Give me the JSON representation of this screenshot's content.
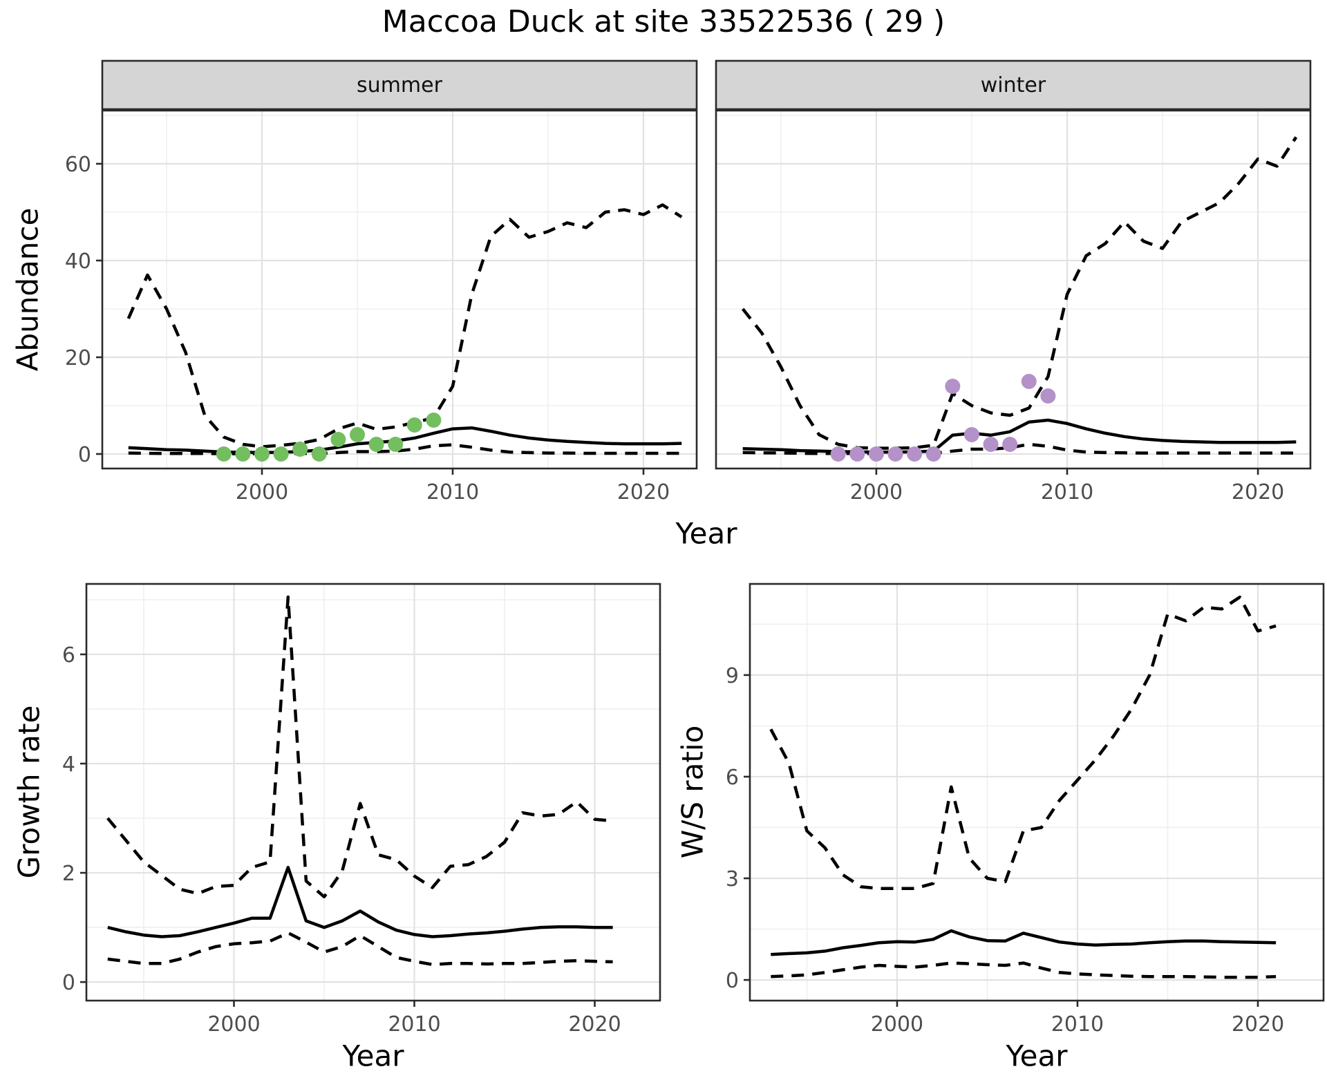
{
  "title": "Maccoa Duck at site 33522536 ( 29 )",
  "top_row": {
    "xlabel": "Year",
    "ylabel": "Abundance",
    "facets": [
      "summer",
      "winter"
    ]
  },
  "styles": {
    "background": "#ffffff",
    "grid_major": "#e2e2e2",
    "grid_minor": "#efefef",
    "panel_border": "#2a2a2a",
    "strip_fill": "#d5d5d5",
    "strip_text": "#111111",
    "tick_label_color": "#4d4d4d",
    "axis_title_color": "#000000",
    "line_color": "#000000",
    "summer_point_color": "#73be5f",
    "winter_point_color": "#b491c8"
  },
  "chart_data": [
    {
      "id": "abundance-summer",
      "type": "line",
      "facet": "summer",
      "xlabel": "Year",
      "ylabel": "Abundance",
      "xlim": [
        1991.63,
        2022.79
      ],
      "ylim": [
        -3,
        71
      ],
      "xticks": [
        2000,
        2010,
        2020
      ],
      "yticks": [
        0,
        20,
        40,
        60
      ],
      "grid": true,
      "x": [
        1993,
        1994,
        1995,
        1996,
        1997,
        1998,
        1999,
        2000,
        2001,
        2002,
        2003,
        2004,
        2005,
        2006,
        2007,
        2008,
        2009,
        2010,
        2011,
        2012,
        2013,
        2014,
        2015,
        2016,
        2017,
        2018,
        2019,
        2020,
        2021,
        2022
      ],
      "series": [
        {
          "name": "median",
          "linetype": "solid",
          "values": [
            1.3,
            1.1,
            0.9,
            0.8,
            0.6,
            0.4,
            0.35,
            0.3,
            0.35,
            0.5,
            0.8,
            1.4,
            2.1,
            2.4,
            2.7,
            3.3,
            4.3,
            5.2,
            5.4,
            4.7,
            3.9,
            3.3,
            2.9,
            2.6,
            2.4,
            2.2,
            2.1,
            2.1,
            2.1,
            2.2
          ]
        },
        {
          "name": "upper-ci",
          "linetype": "dashed",
          "values": [
            28,
            37,
            30,
            21,
            8,
            3.5,
            2,
            1.5,
            1.8,
            2.2,
            3,
            5.2,
            6.4,
            5.1,
            5.6,
            6.5,
            7.5,
            14,
            33,
            45,
            48.5,
            44.8,
            46,
            47.8,
            46.8,
            50,
            50.5,
            49.5,
            51.5,
            49
          ]
        },
        {
          "name": "lower-ci",
          "linetype": "dashed",
          "values": [
            0.2,
            0.15,
            0.1,
            0.1,
            0.1,
            0.05,
            0.05,
            0.05,
            0.05,
            0.1,
            0.1,
            0.3,
            0.5,
            0.5,
            0.6,
            1.0,
            1.7,
            1.9,
            1.4,
            0.8,
            0.4,
            0.3,
            0.2,
            0.2,
            0.15,
            0.15,
            0.15,
            0.15,
            0.15,
            0.15
          ]
        }
      ],
      "points": {
        "name": "observed-summer-counts",
        "color": "#73be5f",
        "x": [
          1998,
          1999,
          2000,
          2001,
          2002,
          2003,
          2004,
          2005,
          2006,
          2007,
          2008,
          2009
        ],
        "y": [
          0,
          0,
          0,
          0,
          1,
          0,
          3,
          4,
          2,
          2,
          6,
          7
        ]
      }
    },
    {
      "id": "abundance-winter",
      "type": "line",
      "facet": "winter",
      "xlabel": "Year",
      "ylabel": "Abundance",
      "xlim": [
        1991.6,
        2022.75
      ],
      "ylim": [
        -3,
        71
      ],
      "xticks": [
        2000,
        2010,
        2020
      ],
      "yticks": [
        0,
        20,
        40,
        60
      ],
      "grid": true,
      "x": [
        1993,
        1994,
        1995,
        1996,
        1997,
        1998,
        1999,
        2000,
        2001,
        2002,
        2003,
        2004,
        2005,
        2006,
        2007,
        2008,
        2009,
        2010,
        2011,
        2012,
        2013,
        2014,
        2015,
        2016,
        2017,
        2018,
        2019,
        2020,
        2021,
        2022
      ],
      "series": [
        {
          "name": "median",
          "linetype": "solid",
          "values": [
            1.1,
            1.0,
            0.9,
            0.7,
            0.6,
            0.5,
            0.45,
            0.4,
            0.4,
            0.45,
            0.6,
            3.9,
            4.3,
            3.9,
            4.6,
            6.6,
            7.0,
            6.3,
            5.2,
            4.3,
            3.6,
            3.1,
            2.8,
            2.6,
            2.5,
            2.4,
            2.4,
            2.4,
            2.4,
            2.5
          ]
        },
        {
          "name": "upper-ci",
          "linetype": "dashed",
          "values": [
            30,
            25,
            18,
            10,
            4,
            2,
            1.3,
            1.2,
            1.2,
            1.3,
            1.8,
            12.5,
            10,
            8.5,
            8,
            9.5,
            16,
            33,
            41,
            43.5,
            48,
            44,
            42.5,
            48,
            50,
            52,
            56,
            61,
            59.5,
            65.5
          ]
        },
        {
          "name": "lower-ci",
          "linetype": "dashed",
          "values": [
            0.3,
            0.25,
            0.2,
            0.15,
            0.1,
            0.1,
            0.1,
            0.1,
            0.1,
            0.1,
            0.15,
            0.6,
            1.0,
            1.0,
            1.3,
            2.0,
            1.6,
            0.8,
            0.4,
            0.3,
            0.25,
            0.2,
            0.2,
            0.2,
            0.2,
            0.2,
            0.2,
            0.2,
            0.2,
            0.2
          ]
        }
      ],
      "points": {
        "name": "observed-winter-counts",
        "color": "#b491c8",
        "x": [
          1998,
          1999,
          2000,
          2001,
          2002,
          2003,
          2004,
          2005,
          2006,
          2007,
          2008,
          2009
        ],
        "y": [
          0,
          0,
          0,
          0,
          0,
          0,
          14,
          4,
          2,
          2,
          15,
          12
        ]
      }
    },
    {
      "id": "growth-rate",
      "type": "line",
      "facet": null,
      "xlabel": "Year",
      "ylabel": "Growth rate",
      "xlim": [
        1991.82,
        2023.62
      ],
      "ylim": [
        -0.34,
        7.29
      ],
      "xticks": [
        2000,
        2010,
        2020
      ],
      "yticks": [
        0,
        2,
        4,
        6
      ],
      "grid": true,
      "x": [
        1993,
        1994,
        1995,
        1996,
        1997,
        1998,
        1999,
        2000,
        2001,
        2002,
        2003,
        2004,
        2005,
        2006,
        2007,
        2008,
        2009,
        2010,
        2011,
        2012,
        2013,
        2014,
        2015,
        2016,
        2017,
        2018,
        2019,
        2020,
        2021
      ],
      "series": [
        {
          "name": "median",
          "linetype": "solid",
          "values": [
            1.0,
            0.92,
            0.86,
            0.83,
            0.85,
            0.92,
            1.0,
            1.08,
            1.17,
            1.17,
            2.1,
            1.12,
            1.0,
            1.12,
            1.3,
            1.1,
            0.95,
            0.87,
            0.83,
            0.85,
            0.88,
            0.9,
            0.93,
            0.97,
            1.0,
            1.01,
            1.01,
            1.0,
            1.0
          ]
        },
        {
          "name": "upper-ci",
          "linetype": "dashed",
          "values": [
            3.0,
            2.6,
            2.2,
            1.95,
            1.7,
            1.62,
            1.75,
            1.77,
            2.1,
            2.2,
            7.05,
            1.85,
            1.56,
            2.03,
            3.27,
            2.33,
            2.24,
            1.94,
            1.73,
            2.12,
            2.15,
            2.3,
            2.56,
            3.1,
            3.04,
            3.07,
            3.3,
            2.98,
            2.95
          ]
        },
        {
          "name": "lower-ci",
          "linetype": "dashed",
          "values": [
            0.42,
            0.38,
            0.34,
            0.34,
            0.42,
            0.55,
            0.65,
            0.7,
            0.72,
            0.75,
            0.9,
            0.73,
            0.55,
            0.65,
            0.85,
            0.65,
            0.45,
            0.38,
            0.32,
            0.34,
            0.34,
            0.33,
            0.34,
            0.34,
            0.36,
            0.38,
            0.39,
            0.38,
            0.37
          ]
        }
      ],
      "points": null
    },
    {
      "id": "ws-ratio",
      "type": "line",
      "facet": null,
      "xlabel": "Year",
      "ylabel": "W/S ratio",
      "xlim": [
        1991.84,
        2023.64
      ],
      "ylim": [
        -0.61,
        11.69
      ],
      "xticks": [
        2000,
        2010,
        2020
      ],
      "yticks": [
        0,
        3,
        6,
        9
      ],
      "grid": true,
      "x": [
        1993,
        1994,
        1995,
        1996,
        1997,
        1998,
        1999,
        2000,
        2001,
        2002,
        2003,
        2004,
        2005,
        2006,
        2007,
        2008,
        2009,
        2010,
        2011,
        2012,
        2013,
        2014,
        2015,
        2016,
        2017,
        2018,
        2019,
        2020,
        2021
      ],
      "series": [
        {
          "name": "median",
          "linetype": "solid",
          "values": [
            0.75,
            0.78,
            0.8,
            0.85,
            0.95,
            1.02,
            1.1,
            1.13,
            1.12,
            1.2,
            1.45,
            1.27,
            1.16,
            1.15,
            1.38,
            1.25,
            1.12,
            1.06,
            1.03,
            1.05,
            1.06,
            1.1,
            1.13,
            1.15,
            1.15,
            1.13,
            1.12,
            1.11,
            1.1
          ]
        },
        {
          "name": "upper-ci",
          "linetype": "dashed",
          "values": [
            7.4,
            6.4,
            4.4,
            3.9,
            3.1,
            2.75,
            2.7,
            2.7,
            2.7,
            2.85,
            5.7,
            3.6,
            3.0,
            2.9,
            4.4,
            4.5,
            5.3,
            5.9,
            6.5,
            7.2,
            8.0,
            9.0,
            10.8,
            10.6,
            11.0,
            10.95,
            11.3,
            10.3,
            10.45
          ]
        },
        {
          "name": "lower-ci",
          "linetype": "dashed",
          "values": [
            0.1,
            0.12,
            0.15,
            0.22,
            0.3,
            0.38,
            0.43,
            0.4,
            0.38,
            0.43,
            0.5,
            0.48,
            0.45,
            0.43,
            0.5,
            0.35,
            0.22,
            0.18,
            0.15,
            0.13,
            0.11,
            0.1,
            0.1,
            0.1,
            0.09,
            0.08,
            0.08,
            0.08,
            0.1
          ]
        }
      ],
      "points": null
    }
  ]
}
